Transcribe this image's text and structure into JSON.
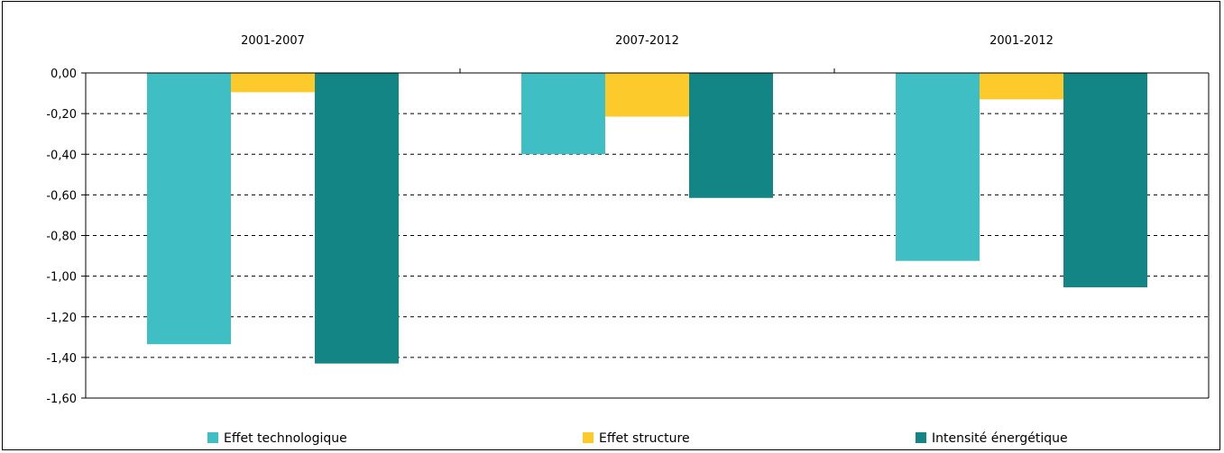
{
  "chart_data": {
    "type": "bar",
    "categories": [
      "2001-2007",
      "2007-2012",
      "2001-2012"
    ],
    "series": [
      {
        "name": "Effet technologique",
        "color": "#3fbfc4",
        "values": [
          -1.335,
          -0.4,
          -0.925
        ]
      },
      {
        "name": "Effet structure",
        "color": "#fcca2a",
        "values": [
          -0.095,
          -0.215,
          -0.13
        ]
      },
      {
        "name": "Intensité énergétique",
        "color": "#148585",
        "values": [
          -1.43,
          -0.615,
          -1.055
        ]
      }
    ],
    "ylim": [
      -1.6,
      0
    ],
    "yticks": [
      "0,00",
      "-0,20",
      "-0,40",
      "-0,60",
      "-0,80",
      "-1,00",
      "-1,20",
      "-1,40",
      "-1,60"
    ],
    "ytick_values": [
      0,
      -0.2,
      -0.4,
      -0.6,
      -0.8,
      -1.0,
      -1.2,
      -1.4,
      -1.6
    ],
    "grid": true,
    "legend_position": "bottom",
    "category_labels_position": "top"
  }
}
